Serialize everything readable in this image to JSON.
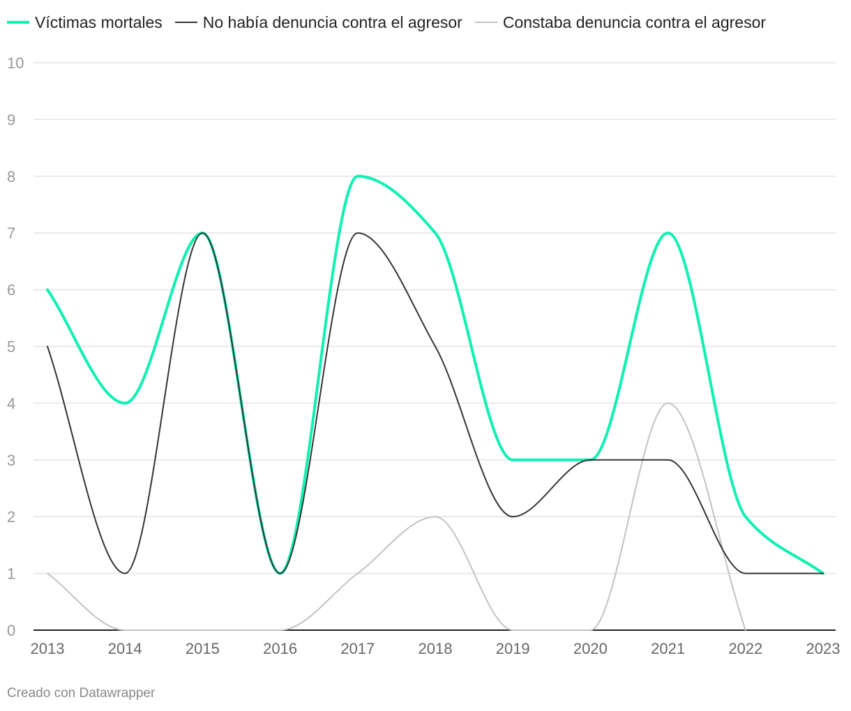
{
  "chart_data": {
    "type": "line",
    "x": [
      2013,
      2014,
      2015,
      2016,
      2017,
      2018,
      2019,
      2020,
      2021,
      2022,
      2023
    ],
    "series": [
      {
        "name": "Víctimas mortales",
        "color": "#0ff0b3",
        "values": [
          6,
          4,
          7,
          1,
          8,
          7,
          3,
          3,
          7,
          2,
          1
        ]
      },
      {
        "name": "No había denuncia contra el agresor",
        "color": "#333333",
        "values": [
          5,
          1,
          7,
          1,
          7,
          5,
          2,
          3,
          3,
          1,
          1
        ]
      },
      {
        "name": "Constaba denuncia contra el agresor",
        "color": "#c2c2c2",
        "values": [
          1,
          0,
          0,
          0,
          1,
          2,
          0,
          0,
          4,
          0,
          null
        ]
      }
    ],
    "ylim": [
      0,
      10
    ],
    "yticks": [
      0,
      1,
      2,
      3,
      4,
      5,
      6,
      7,
      8,
      9,
      10
    ],
    "grid": true,
    "legend": "top-left"
  },
  "credit": "Creado con Datawrapper"
}
